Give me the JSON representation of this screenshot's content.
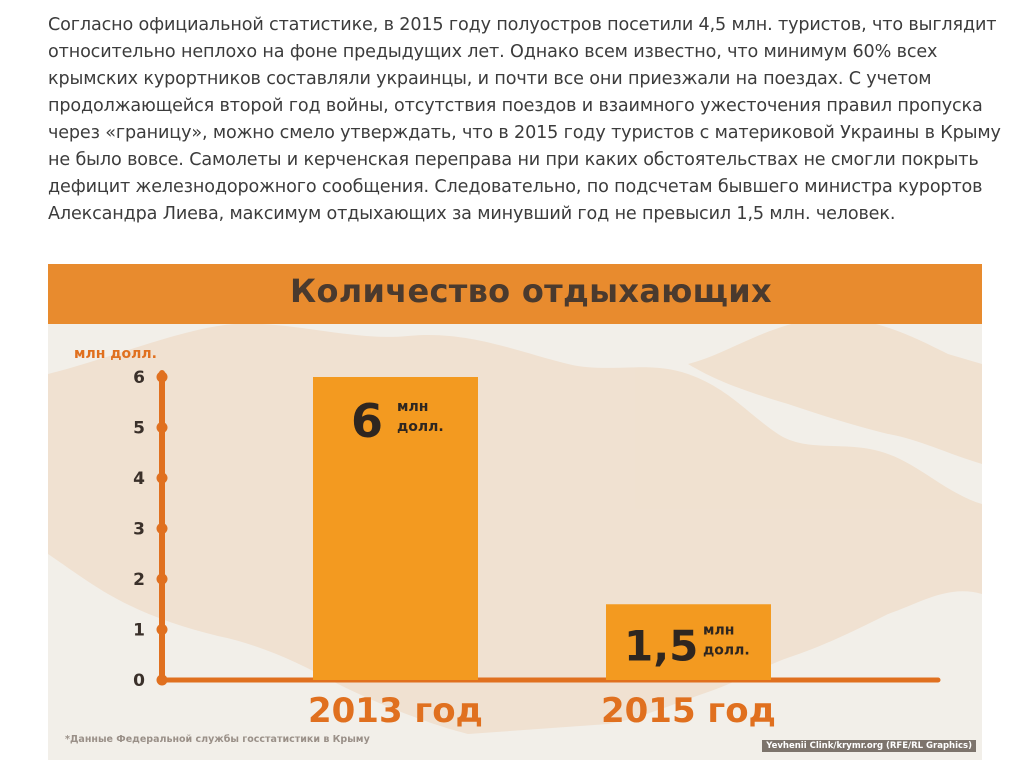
{
  "article": {
    "lines": [
      "Согласно официальной статистике, в 2015 году полуостров посетили 4,5 млн. туристов, что выглядит",
      "относительно неплохо на фоне предыдущих лет. Однако всем известно, что минимум 60% всех",
      "крымских курортников составляли украинцы, и почти все они приезжали на поездах. С учетом",
      "продолжающейся второй год войны, отсутствия поездов и взаимного ужесточения правил пропуска",
      "через «границу», можно смело утверждать, что в 2015 году туристов с материковой Украины в Крыму",
      "не было вовсе. Самолеты и керченская переправа ни при каких обстоятельствах не смогли покрыть",
      "дефицит железнодорожного сообщения. Следовательно, по подсчетам бывшего министра курортов",
      "Александра Лиева, максимум отдыхающих за минувший год не превысил 1,5 млн. человек."
    ]
  },
  "infographic": {
    "footnote": "*Данные Федеральной службы госстатистики в Крыму",
    "credit": "Yevhenii Clink/krymr.org (RFE/RL Graphics)",
    "colors": {
      "banner": "#e88b2e",
      "bar": "#f39a20",
      "axis": "#e0701f",
      "title_text": "#4a3a2e",
      "value_text": "#2e2620",
      "category_text": "#e0701f",
      "background": "#f2efe9",
      "map": "#efd6bd"
    }
  },
  "chart_data": {
    "type": "bar",
    "title": "Количество отдыхающих",
    "ylabel": "млн долл.",
    "ylim": [
      0,
      6
    ],
    "yticks": [
      "0",
      "1",
      "2",
      "3",
      "4",
      "5",
      "6"
    ],
    "categories": [
      "2013 год",
      "2015 год"
    ],
    "values": [
      6,
      1.5
    ],
    "value_labels": [
      {
        "big": "6",
        "unit_line1": "млн",
        "unit_line2": "долл."
      },
      {
        "big": "1,5",
        "unit_line1": "млн",
        "unit_line2": "долл."
      }
    ]
  }
}
